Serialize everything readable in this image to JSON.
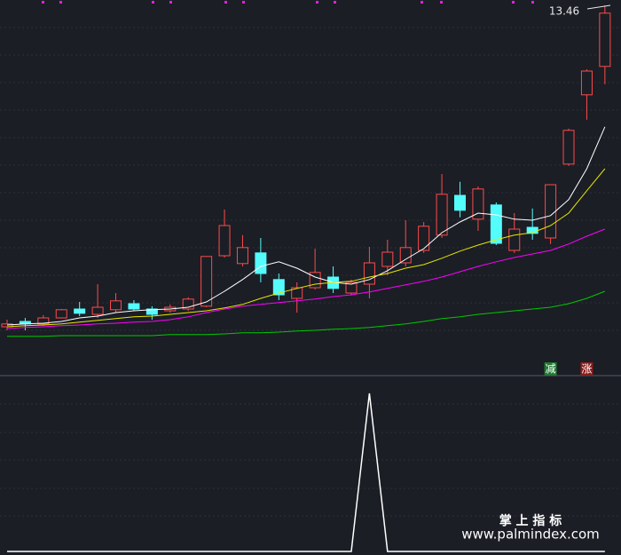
{
  "chart_data": [
    {
      "type": "candlestick",
      "open": [
        4.41,
        4.56,
        4.49,
        4.66,
        4.91,
        4.76,
        4.89,
        5.06,
        4.91,
        4.86,
        4.91,
        4.99,
        6.41,
        6.19,
        6.49,
        5.74,
        5.21,
        5.51,
        5.81,
        5.36,
        5.61,
        6.11,
        6.21,
        6.56,
        6.99,
        8.11,
        7.44,
        7.84,
        6.56,
        7.21,
        6.91,
        8.99,
        10.94,
        11.74
      ],
      "high": [
        4.61,
        4.66,
        4.74,
        4.91,
        5.11,
        5.61,
        5.36,
        5.16,
        4.99,
        5.04,
        5.24,
        6.39,
        7.71,
        6.99,
        6.91,
        5.91,
        5.66,
        6.61,
        6.11,
        5.74,
        6.66,
        6.86,
        7.41,
        7.36,
        8.71,
        8.49,
        8.36,
        7.91,
        7.61,
        7.74,
        8.41,
        9.99,
        11.66,
        13.46
      ],
      "low": [
        4.31,
        4.31,
        4.44,
        4.64,
        4.71,
        4.66,
        4.81,
        4.86,
        4.61,
        4.81,
        4.86,
        4.96,
        6.36,
        6.11,
        5.66,
        5.16,
        4.81,
        5.46,
        5.36,
        5.29,
        5.21,
        5.86,
        6.11,
        6.49,
        6.91,
        7.49,
        7.11,
        6.71,
        6.49,
        6.86,
        6.74,
        8.94,
        10.24,
        11.24
      ],
      "close": [
        4.49,
        4.49,
        4.66,
        4.89,
        4.79,
        4.96,
        5.14,
        4.91,
        4.76,
        4.96,
        5.19,
        6.39,
        7.26,
        6.64,
        5.91,
        5.31,
        5.51,
        5.94,
        5.49,
        5.66,
        6.21,
        6.51,
        6.64,
        7.24,
        8.14,
        7.69,
        8.29,
        6.76,
        7.16,
        7.04,
        8.41,
        9.94,
        11.61,
        13.24
      ],
      "up_color": "#ff4a4a",
      "down_color": "#54fcfc",
      "series": [
        {
          "color": "#ffffff",
          "values": [
            4.46,
            4.49,
            4.51,
            4.56,
            4.66,
            4.71,
            4.81,
            4.86,
            4.89,
            4.91,
            4.96,
            5.11,
            5.41,
            5.74,
            6.11,
            6.24,
            6.06,
            5.81,
            5.66,
            5.61,
            5.74,
            5.99,
            6.31,
            6.61,
            7.06,
            7.36,
            7.61,
            7.56,
            7.44,
            7.41,
            7.54,
            7.99,
            8.86,
            10.04
          ]
        },
        {
          "color": "#e6e600",
          "values": [
            4.41,
            4.44,
            4.46,
            4.49,
            4.54,
            4.59,
            4.64,
            4.69,
            4.71,
            4.76,
            4.81,
            4.86,
            4.94,
            5.04,
            5.21,
            5.36,
            5.49,
            5.61,
            5.66,
            5.69,
            5.81,
            5.91,
            6.06,
            6.16,
            6.34,
            6.54,
            6.71,
            6.86,
            6.99,
            7.06,
            7.26,
            7.61,
            8.24,
            8.86
          ]
        },
        {
          "color": "#ff00ff",
          "values": [
            4.36,
            4.39,
            4.41,
            4.44,
            4.46,
            4.49,
            4.51,
            4.54,
            4.56,
            4.61,
            4.69,
            4.81,
            4.91,
            4.99,
            5.04,
            5.09,
            5.14,
            5.19,
            5.26,
            5.31,
            5.39,
            5.49,
            5.59,
            5.69,
            5.81,
            5.96,
            6.11,
            6.24,
            6.36,
            6.46,
            6.56,
            6.74,
            6.96,
            7.16
          ]
        },
        {
          "color": "#00c800",
          "values": [
            4.14,
            4.14,
            4.14,
            4.16,
            4.16,
            4.16,
            4.16,
            4.16,
            4.16,
            4.19,
            4.19,
            4.19,
            4.21,
            4.24,
            4.24,
            4.26,
            4.29,
            4.31,
            4.34,
            4.36,
            4.39,
            4.44,
            4.49,
            4.56,
            4.64,
            4.69,
            4.76,
            4.81,
            4.86,
            4.91,
            4.96,
            5.06,
            5.21,
            5.41
          ]
        }
      ],
      "markers": [
        null,
        null,
        null,
        null,
        null,
        null,
        null,
        null,
        null,
        null,
        null,
        null,
        null,
        null,
        null,
        null,
        null,
        null,
        null,
        null,
        null,
        null,
        null,
        null,
        null,
        null,
        null,
        null,
        null,
        null,
        {
          "text": "减",
          "color": "#1f7a30"
        },
        null,
        {
          "text": "涨",
          "color": "#8c1c1c"
        },
        null
      ],
      "ylim": [
        3.06,
        13.61
      ]
    },
    {
      "type": "line",
      "color": "#ffffff",
      "values": [
        0,
        0,
        0,
        0,
        0,
        0,
        0,
        0,
        0,
        0,
        0,
        0,
        0,
        0,
        0,
        0,
        0,
        0,
        0,
        0,
        1,
        0,
        0,
        0,
        0,
        0,
        0,
        0,
        0,
        0,
        0,
        0,
        0,
        0
      ],
      "ylim": [
        0,
        1
      ]
    }
  ],
  "watermark": {
    "title": "掌 上 指 标",
    "url": "www.palmindex.com"
  }
}
